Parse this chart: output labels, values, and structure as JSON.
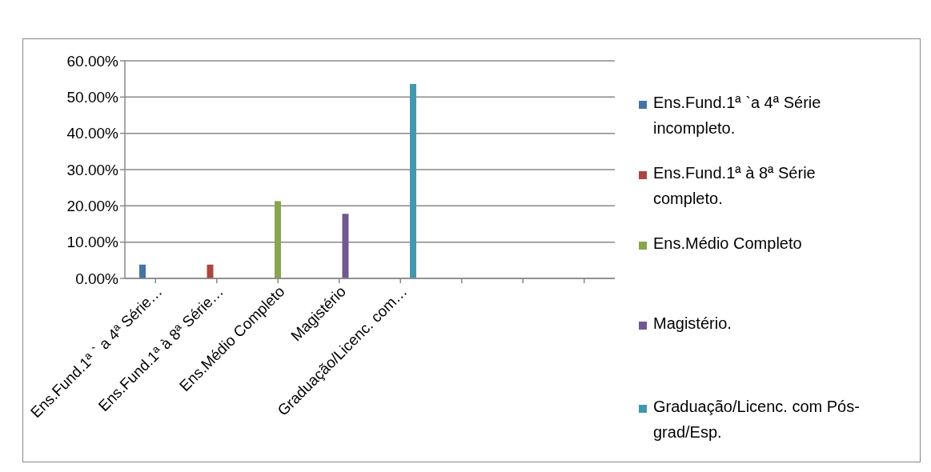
{
  "chart_data": {
    "type": "bar",
    "categories": [
      "Ens.Fund.1ª ` a 4ª Série…",
      "Ens.Fund.1ª à 8ª Série…",
      "Ens.Médio Completo",
      "Magistério",
      "Graduação/Licenc. com…",
      null,
      null,
      null
    ],
    "series": [
      {
        "name": "Ens.Fund.1ª `a 4ª Série incompleto.",
        "color": "#4572a7",
        "values": [
          3.8,
          null,
          null,
          null,
          null,
          null,
          null,
          null
        ]
      },
      {
        "name": "Ens.Fund.1ª à 8ª Série completo.",
        "color": "#aa4643",
        "values": [
          null,
          3.8,
          null,
          null,
          null,
          null,
          null,
          null
        ]
      },
      {
        "name": "Ens.Médio Completo",
        "color": "#89a54e",
        "values": [
          null,
          null,
          21.3,
          null,
          null,
          null,
          null,
          null
        ]
      },
      {
        "name": "Magistério.",
        "color": "#71588f",
        "values": [
          null,
          null,
          null,
          17.8,
          null,
          null,
          null,
          null
        ]
      },
      {
        "name": "Graduação/Licenc. com Pós-grad/Esp.",
        "color": "#4198af",
        "values": [
          null,
          null,
          null,
          null,
          53.6,
          null,
          null,
          null
        ]
      }
    ],
    "ylim": [
      0,
      60
    ],
    "yticks": [
      {
        "value": 0,
        "label": "0.00%"
      },
      {
        "value": 10,
        "label": "10.00%"
      },
      {
        "value": 20,
        "label": "20.00%"
      },
      {
        "value": 30,
        "label": "30.00%"
      },
      {
        "value": 40,
        "label": "40.00%"
      },
      {
        "value": 50,
        "label": "50.00%"
      },
      {
        "value": 60,
        "label": "60.00%"
      }
    ],
    "grid": "y",
    "legend": "right"
  }
}
